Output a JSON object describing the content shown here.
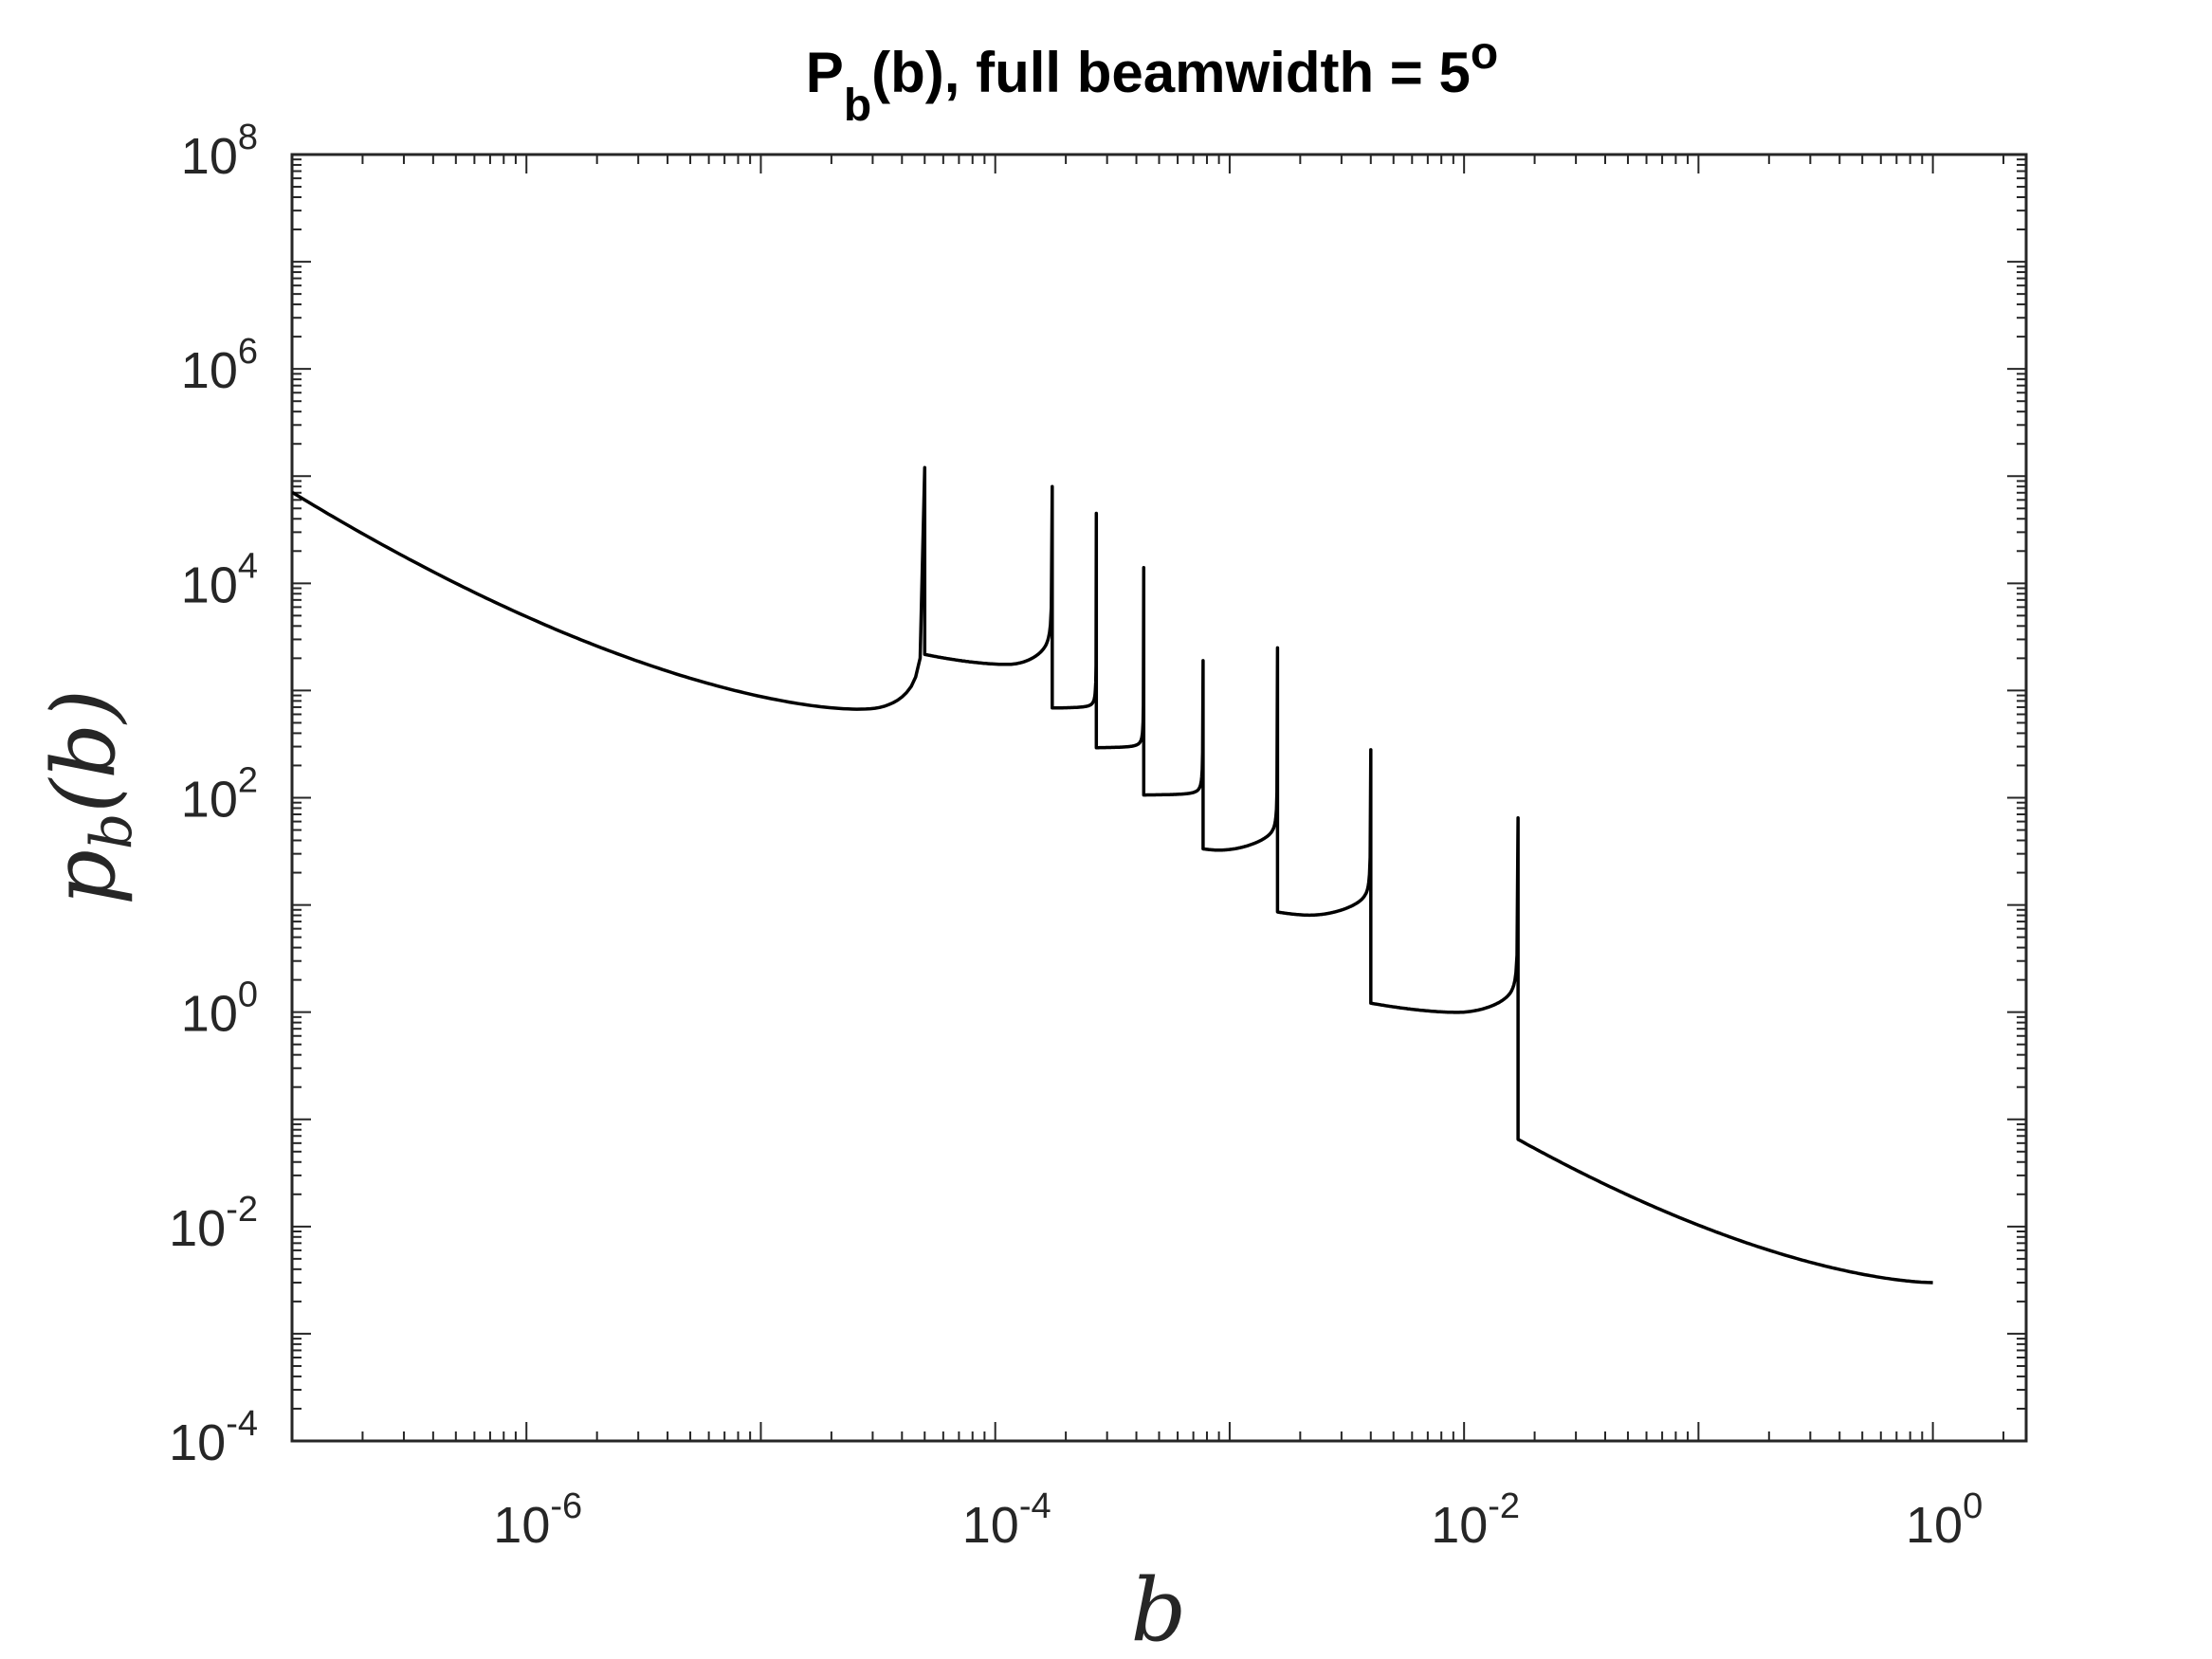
{
  "chart_data": {
    "type": "line",
    "title": {
      "main": "P",
      "sub": "b",
      "rest": "(b), full beamwidth = 5",
      "sup": "o"
    },
    "xlabel": "b",
    "ylabel": {
      "main": "p",
      "sub": "b",
      "rest": "(b)"
    },
    "x_scale": "log",
    "y_scale": "log",
    "xlim": [
      1e-07,
      2.5
    ],
    "ylim": [
      0.0001,
      100000000.0
    ],
    "grid": false,
    "x_ticks": [
      {
        "value": 1e-06,
        "base": "10",
        "exp": "-6"
      },
      {
        "value": 0.0001,
        "base": "10",
        "exp": "-4"
      },
      {
        "value": 0.01,
        "base": "10",
        "exp": "-2"
      },
      {
        "value": 1,
        "base": "10",
        "exp": "0"
      }
    ],
    "y_ticks": [
      {
        "value": 0.0001,
        "base": "10",
        "exp": "-4"
      },
      {
        "value": 0.01,
        "base": "10",
        "exp": "-2"
      },
      {
        "value": 1,
        "base": "10",
        "exp": "0"
      },
      {
        "value": 100.0,
        "base": "10",
        "exp": "2"
      },
      {
        "value": 10000.0,
        "base": "10",
        "exp": "4"
      },
      {
        "value": 1000000.0,
        "base": "10",
        "exp": "6"
      },
      {
        "value": 100000000.0,
        "base": "10",
        "exp": "8"
      }
    ],
    "line_color": "#000000",
    "series": [
      {
        "segments": [
          {
            "x_start": 1e-07,
            "x_end": 5e-05,
            "y_start": 70000,
            "y_min": 600,
            "x_min": 3e-05,
            "y_peak": 120000
          },
          {
            "x_start": 5e-05,
            "x_end": 0.000175,
            "y_start": 2150,
            "y_min": 1700,
            "x_min": 0.000115,
            "y_peak": 80000
          },
          {
            "x_start": 0.000175,
            "x_end": 0.00027,
            "y_start": 680,
            "y_min": 680,
            "x_min": 0.000175,
            "y_peak": 45000
          },
          {
            "x_start": 0.00027,
            "x_end": 0.00043,
            "y_start": 290,
            "y_min": 290,
            "x_min": 0.00027,
            "y_peak": 14000
          },
          {
            "x_start": 0.00043,
            "x_end": 0.00077,
            "y_start": 105,
            "y_min": 105,
            "x_min": 0.00043,
            "y_peak": 1900
          },
          {
            "x_start": 0.00077,
            "x_end": 0.0016,
            "y_start": 33,
            "y_min": 32,
            "x_min": 0.0009,
            "y_peak": 2500
          },
          {
            "x_start": 0.0016,
            "x_end": 0.004,
            "y_start": 8.5,
            "y_min": 7.9,
            "x_min": 0.0022,
            "y_peak": 280
          },
          {
            "x_start": 0.004,
            "x_end": 0.017,
            "y_start": 1.2,
            "y_min": 0.97,
            "x_min": 0.0095,
            "y_peak": 65
          },
          {
            "x_start": 0.017,
            "x_end": 1.0,
            "y_start": 0.065,
            "y_min": 0.003,
            "x_min": 1.0,
            "y_peak": null
          }
        ]
      }
    ]
  }
}
